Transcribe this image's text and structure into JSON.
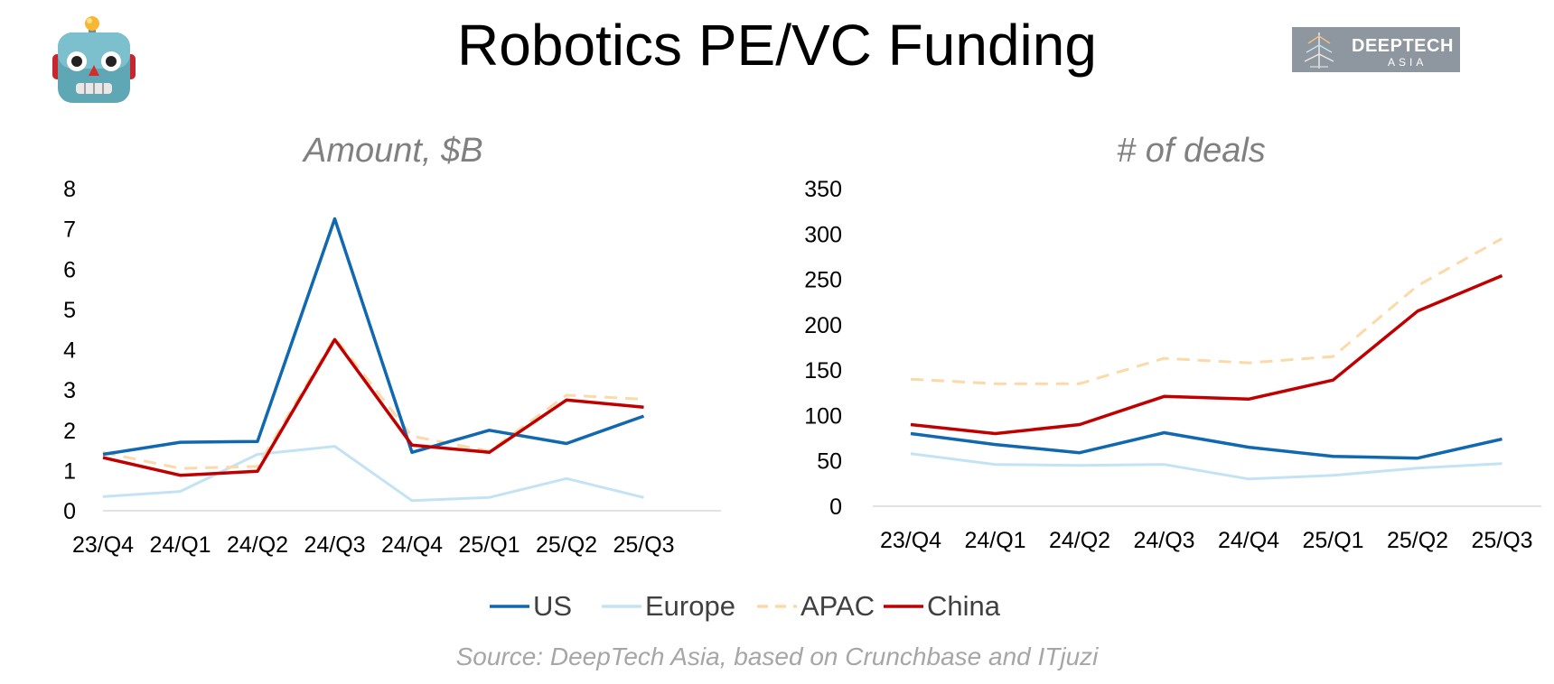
{
  "title": "Robotics PE/VC Funding",
  "logo": {
    "line1": "DEEPTECH",
    "line2": "ASIA"
  },
  "robot_icon": "robot-face-icon",
  "source": "Source: DeepTech Asia, based on Crunchbase and ITjuzi",
  "legend": [
    {
      "name": "US",
      "color": "#1068b0",
      "dash": false
    },
    {
      "name": "Europe",
      "color": "#c3e3f4",
      "dash": false
    },
    {
      "name": "APAC",
      "color": "#fbd9a8",
      "dash": true
    },
    {
      "name": "China",
      "color": "#c00000",
      "dash": false
    }
  ],
  "chart_data": [
    {
      "type": "line",
      "title": "Amount, $B",
      "categories": [
        "23/Q4",
        "24/Q1",
        "24/Q2",
        "24/Q3",
        "24/Q4",
        "25/Q1",
        "25/Q2",
        "25/Q3"
      ],
      "ylim": [
        0,
        8
      ],
      "yticks": [
        0,
        1,
        2,
        3,
        4,
        5,
        6,
        7,
        8
      ],
      "grid": false,
      "legend_position": "bottom",
      "series": [
        {
          "name": "US",
          "values": [
            1.4,
            1.7,
            1.72,
            7.25,
            1.45,
            2.0,
            1.67,
            2.35
          ]
        },
        {
          "name": "Europe",
          "values": [
            0.35,
            0.48,
            1.4,
            1.6,
            0.25,
            0.33,
            0.8,
            0.33
          ]
        },
        {
          "name": "APAC",
          "values": [
            1.45,
            1.05,
            1.1,
            4.3,
            1.85,
            1.48,
            2.87,
            2.77
          ]
        },
        {
          "name": "China",
          "values": [
            1.32,
            0.88,
            0.98,
            4.25,
            1.63,
            1.45,
            2.75,
            2.57
          ]
        }
      ]
    },
    {
      "type": "line",
      "title": "# of deals",
      "categories": [
        "23/Q4",
        "24/Q1",
        "24/Q2",
        "24/Q3",
        "24/Q4",
        "25/Q1",
        "25/Q2",
        "25/Q3"
      ],
      "ylim": [
        0,
        350
      ],
      "yticks": [
        0,
        50,
        100,
        150,
        200,
        250,
        300,
        350
      ],
      "grid": false,
      "legend_position": "bottom",
      "series": [
        {
          "name": "US",
          "values": [
            80,
            68,
            59,
            81,
            65,
            55,
            53,
            74
          ]
        },
        {
          "name": "Europe",
          "values": [
            58,
            46,
            45,
            46,
            30,
            34,
            42,
            47
          ]
        },
        {
          "name": "APAC",
          "values": [
            140,
            135,
            135,
            163,
            158,
            165,
            243,
            295
          ]
        },
        {
          "name": "China",
          "values": [
            90,
            80,
            90,
            121,
            118,
            139,
            215,
            254
          ]
        }
      ]
    }
  ]
}
